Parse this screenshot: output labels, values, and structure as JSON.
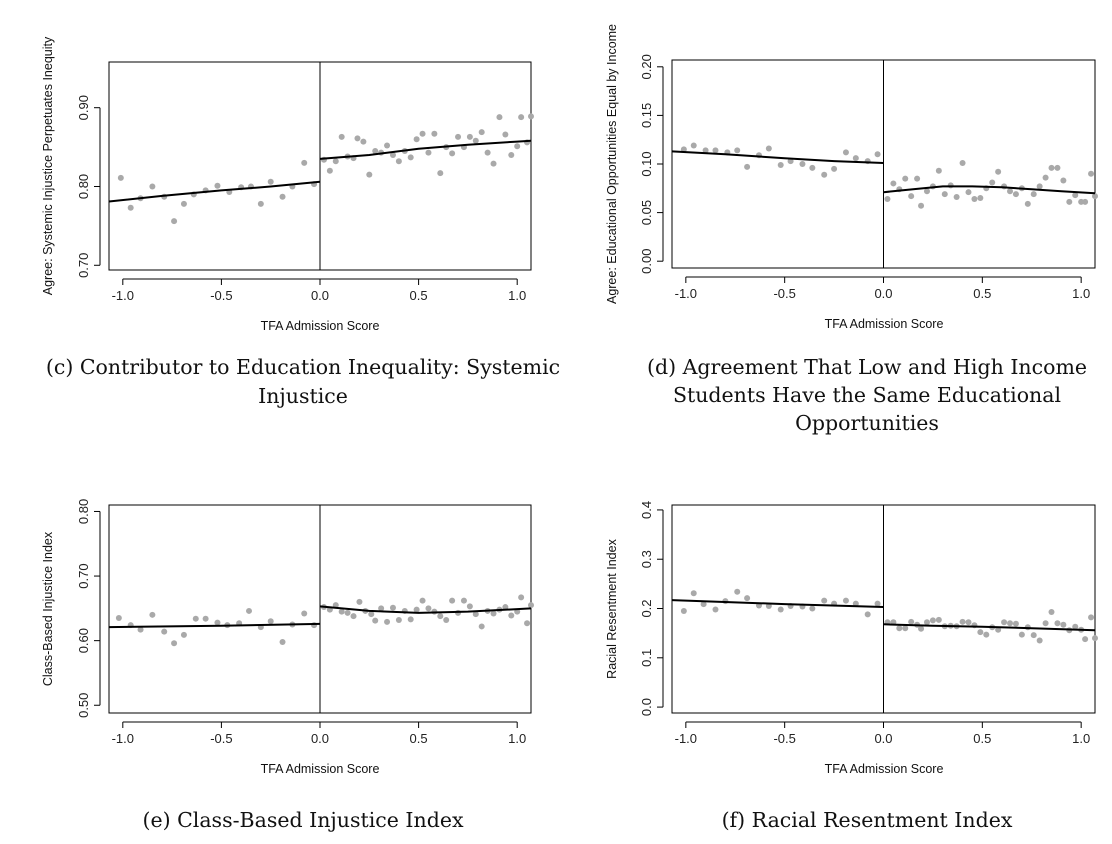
{
  "chart_data": [
    {
      "type": "scatter",
      "panel": "c",
      "caption_lines": [
        "(c) Contributor to Education Inequality: Systemic",
        "Injustice"
      ],
      "xlabel": "TFA Admission Score",
      "ylabel": "Agree: Systemic Injustice Perpetuates Inequity",
      "xlim": [
        -1.07,
        1.07
      ],
      "ylim": [
        0.694,
        0.958
      ],
      "xticks": [
        -1.0,
        -0.5,
        0.0,
        0.5,
        1.0
      ],
      "xtick_labels": [
        "-1.0",
        "-0.5",
        "0.0",
        "0.5",
        "1.0"
      ],
      "yticks": [
        0.7,
        0.8,
        0.9
      ],
      "ytick_labels": [
        "0.70",
        "0.80",
        "0.90"
      ],
      "cutoff": 0.0,
      "grid": false,
      "legend": "none",
      "points": [
        [
          -1.01,
          0.811
        ],
        [
          -0.96,
          0.773
        ],
        [
          -0.91,
          0.785
        ],
        [
          -0.85,
          0.8
        ],
        [
          -0.79,
          0.787
        ],
        [
          -0.74,
          0.756
        ],
        [
          -0.69,
          0.778
        ],
        [
          -0.64,
          0.79
        ],
        [
          -0.58,
          0.795
        ],
        [
          -0.52,
          0.801
        ],
        [
          -0.46,
          0.793
        ],
        [
          -0.4,
          0.799
        ],
        [
          -0.35,
          0.8
        ],
        [
          -0.3,
          0.778
        ],
        [
          -0.25,
          0.806
        ],
        [
          -0.19,
          0.787
        ],
        [
          -0.14,
          0.8
        ],
        [
          -0.08,
          0.83
        ],
        [
          -0.03,
          0.803
        ],
        [
          0.02,
          0.834
        ],
        [
          0.05,
          0.82
        ],
        [
          0.08,
          0.832
        ],
        [
          0.11,
          0.863
        ],
        [
          0.14,
          0.838
        ],
        [
          0.17,
          0.836
        ],
        [
          0.19,
          0.861
        ],
        [
          0.22,
          0.857
        ],
        [
          0.25,
          0.815
        ],
        [
          0.28,
          0.845
        ],
        [
          0.31,
          0.843
        ],
        [
          0.34,
          0.852
        ],
        [
          0.37,
          0.84
        ],
        [
          0.4,
          0.832
        ],
        [
          0.43,
          0.845
        ],
        [
          0.46,
          0.837
        ],
        [
          0.49,
          0.86
        ],
        [
          0.52,
          0.867
        ],
        [
          0.55,
          0.843
        ],
        [
          0.58,
          0.867
        ],
        [
          0.61,
          0.817
        ],
        [
          0.64,
          0.85
        ],
        [
          0.67,
          0.842
        ],
        [
          0.7,
          0.863
        ],
        [
          0.73,
          0.85
        ],
        [
          0.76,
          0.863
        ],
        [
          0.79,
          0.858
        ],
        [
          0.82,
          0.869
        ],
        [
          0.85,
          0.843
        ],
        [
          0.88,
          0.829
        ],
        [
          0.91,
          0.888
        ],
        [
          0.94,
          0.866
        ],
        [
          0.97,
          0.84
        ],
        [
          1.0,
          0.851
        ],
        [
          1.02,
          0.888
        ],
        [
          1.05,
          0.856
        ],
        [
          1.07,
          0.889
        ]
      ],
      "fit_left": [
        [
          -1.07,
          0.781
        ],
        [
          -0.8,
          0.788
        ],
        [
          -0.5,
          0.795
        ],
        [
          -0.25,
          0.8
        ],
        [
          0.0,
          0.806
        ]
      ],
      "fit_right": [
        [
          0.0,
          0.835
        ],
        [
          0.25,
          0.84
        ],
        [
          0.5,
          0.848
        ],
        [
          0.75,
          0.853
        ],
        [
          1.0,
          0.857
        ],
        [
          1.07,
          0.858
        ]
      ]
    },
    {
      "type": "scatter",
      "panel": "d",
      "caption_lines": [
        "(d) Agreement That Low and High Income",
        "Students Have the Same Educational",
        "Opportunities"
      ],
      "xlabel": "TFA Admission Score",
      "ylabel": "Agree: Educational Opportunities Equal by Income",
      "xlim": [
        -1.07,
        1.07
      ],
      "ylim": [
        -0.007,
        0.207
      ],
      "xticks": [
        -1.0,
        -0.5,
        0.0,
        0.5,
        1.0
      ],
      "xtick_labels": [
        "-1.0",
        "-0.5",
        "0.0",
        "0.5",
        "1.0"
      ],
      "yticks": [
        0.0,
        0.05,
        0.1,
        0.15,
        0.2
      ],
      "ytick_labels": [
        "0.00",
        "0.05",
        "0.10",
        "0.15",
        "0.20"
      ],
      "cutoff": 0.0,
      "grid": false,
      "legend": "none",
      "points": [
        [
          -1.01,
          0.115
        ],
        [
          -0.96,
          0.119
        ],
        [
          -0.9,
          0.114
        ],
        [
          -0.85,
          0.114
        ],
        [
          -0.79,
          0.112
        ],
        [
          -0.74,
          0.114
        ],
        [
          -0.69,
          0.097
        ],
        [
          -0.63,
          0.109
        ],
        [
          -0.58,
          0.116
        ],
        [
          -0.52,
          0.099
        ],
        [
          -0.47,
          0.103
        ],
        [
          -0.41,
          0.1
        ],
        [
          -0.36,
          0.096
        ],
        [
          -0.3,
          0.089
        ],
        [
          -0.25,
          0.095
        ],
        [
          -0.19,
          0.112
        ],
        [
          -0.14,
          0.106
        ],
        [
          -0.08,
          0.103
        ],
        [
          -0.03,
          0.11
        ],
        [
          0.02,
          0.064
        ],
        [
          0.05,
          0.08
        ],
        [
          0.08,
          0.074
        ],
        [
          0.11,
          0.085
        ],
        [
          0.14,
          0.067
        ],
        [
          0.17,
          0.085
        ],
        [
          0.19,
          0.057
        ],
        [
          0.22,
          0.072
        ],
        [
          0.25,
          0.077
        ],
        [
          0.28,
          0.093
        ],
        [
          0.31,
          0.069
        ],
        [
          0.34,
          0.078
        ],
        [
          0.37,
          0.066
        ],
        [
          0.4,
          0.101
        ],
        [
          0.43,
          0.071
        ],
        [
          0.46,
          0.064
        ],
        [
          0.49,
          0.065
        ],
        [
          0.52,
          0.075
        ],
        [
          0.55,
          0.081
        ],
        [
          0.58,
          0.092
        ],
        [
          0.61,
          0.077
        ],
        [
          0.64,
          0.072
        ],
        [
          0.67,
          0.069
        ],
        [
          0.7,
          0.075
        ],
        [
          0.73,
          0.059
        ],
        [
          0.76,
          0.069
        ],
        [
          0.79,
          0.077
        ],
        [
          0.82,
          0.086
        ],
        [
          0.85,
          0.096
        ],
        [
          0.88,
          0.096
        ],
        [
          0.91,
          0.083
        ],
        [
          0.94,
          0.061
        ],
        [
          0.97,
          0.068
        ],
        [
          1.0,
          0.061
        ],
        [
          1.02,
          0.061
        ],
        [
          1.05,
          0.09
        ],
        [
          1.07,
          0.067
        ]
      ],
      "fit_left": [
        [
          -1.07,
          0.113
        ],
        [
          -0.8,
          0.11
        ],
        [
          -0.5,
          0.106
        ],
        [
          -0.25,
          0.103
        ],
        [
          0.0,
          0.101
        ]
      ],
      "fit_right": [
        [
          0.0,
          0.071
        ],
        [
          0.15,
          0.074
        ],
        [
          0.3,
          0.077
        ],
        [
          0.45,
          0.077
        ],
        [
          0.6,
          0.076
        ],
        [
          0.75,
          0.074
        ],
        [
          0.9,
          0.072
        ],
        [
          1.07,
          0.07
        ]
      ]
    },
    {
      "type": "scatter",
      "panel": "e",
      "caption_lines": [
        "(e) Class-Based Injustice Index"
      ],
      "xlabel": "TFA Admission Score",
      "ylabel": "Class-Based Injustice Index",
      "xlim": [
        -1.07,
        1.07
      ],
      "ylim": [
        0.488,
        0.81
      ],
      "xticks": [
        -1.0,
        -0.5,
        0.0,
        0.5,
        1.0
      ],
      "xtick_labels": [
        "-1.0",
        "-0.5",
        "0.0",
        "0.5",
        "1.0"
      ],
      "yticks": [
        0.5,
        0.6,
        0.7,
        0.8
      ],
      "ytick_labels": [
        "0.50",
        "0.60",
        "0.70",
        "0.80"
      ],
      "cutoff": 0.0,
      "grid": false,
      "legend": "none",
      "points": [
        [
          -1.02,
          0.635
        ],
        [
          -0.96,
          0.624
        ],
        [
          -0.91,
          0.617
        ],
        [
          -0.85,
          0.64
        ],
        [
          -0.79,
          0.614
        ],
        [
          -0.74,
          0.596
        ],
        [
          -0.69,
          0.609
        ],
        [
          -0.63,
          0.634
        ],
        [
          -0.58,
          0.634
        ],
        [
          -0.52,
          0.628
        ],
        [
          -0.47,
          0.624
        ],
        [
          -0.41,
          0.627
        ],
        [
          -0.36,
          0.646
        ],
        [
          -0.3,
          0.621
        ],
        [
          -0.25,
          0.63
        ],
        [
          -0.19,
          0.598
        ],
        [
          -0.14,
          0.625
        ],
        [
          -0.08,
          0.642
        ],
        [
          -0.03,
          0.624
        ],
        [
          0.02,
          0.652
        ],
        [
          0.05,
          0.648
        ],
        [
          0.08,
          0.655
        ],
        [
          0.11,
          0.645
        ],
        [
          0.14,
          0.643
        ],
        [
          0.17,
          0.638
        ],
        [
          0.2,
          0.66
        ],
        [
          0.23,
          0.646
        ],
        [
          0.26,
          0.641
        ],
        [
          0.28,
          0.631
        ],
        [
          0.31,
          0.65
        ],
        [
          0.34,
          0.629
        ],
        [
          0.37,
          0.651
        ],
        [
          0.4,
          0.632
        ],
        [
          0.43,
          0.646
        ],
        [
          0.46,
          0.633
        ],
        [
          0.49,
          0.648
        ],
        [
          0.52,
          0.662
        ],
        [
          0.55,
          0.65
        ],
        [
          0.58,
          0.645
        ],
        [
          0.61,
          0.638
        ],
        [
          0.64,
          0.632
        ],
        [
          0.67,
          0.662
        ],
        [
          0.7,
          0.643
        ],
        [
          0.73,
          0.662
        ],
        [
          0.76,
          0.653
        ],
        [
          0.79,
          0.641
        ],
        [
          0.82,
          0.622
        ],
        [
          0.85,
          0.646
        ],
        [
          0.88,
          0.642
        ],
        [
          0.91,
          0.648
        ],
        [
          0.94,
          0.652
        ],
        [
          0.97,
          0.639
        ],
        [
          1.0,
          0.645
        ],
        [
          1.02,
          0.667
        ],
        [
          1.05,
          0.627
        ],
        [
          1.07,
          0.655
        ]
      ],
      "fit_left": [
        [
          -1.07,
          0.621
        ],
        [
          -0.5,
          0.623
        ],
        [
          0.0,
          0.626
        ]
      ],
      "fit_right": [
        [
          0.0,
          0.653
        ],
        [
          0.25,
          0.646
        ],
        [
          0.5,
          0.643
        ],
        [
          0.75,
          0.645
        ],
        [
          1.07,
          0.65
        ]
      ]
    },
    {
      "type": "scatter",
      "panel": "f",
      "caption_lines": [
        "(f) Racial Resentment Index"
      ],
      "xlabel": "TFA Admission Score",
      "ylabel": "Racial Resentment Index",
      "xlim": [
        -1.07,
        1.07
      ],
      "ylim": [
        -0.012,
        0.41
      ],
      "xticks": [
        -1.0,
        -0.5,
        0.0,
        0.5,
        1.0
      ],
      "xtick_labels": [
        "-1.0",
        "-0.5",
        "0.0",
        "0.5",
        "1.0"
      ],
      "yticks": [
        0.0,
        0.1,
        0.2,
        0.3,
        0.4
      ],
      "ytick_labels": [
        "0.0",
        "0.1",
        "0.2",
        "0.3",
        "0.4"
      ],
      "cutoff": 0.0,
      "grid": false,
      "legend": "none",
      "points": [
        [
          -1.01,
          0.195
        ],
        [
          -0.96,
          0.231
        ],
        [
          -0.91,
          0.209
        ],
        [
          -0.85,
          0.198
        ],
        [
          -0.8,
          0.215
        ],
        [
          -0.74,
          0.234
        ],
        [
          -0.69,
          0.221
        ],
        [
          -0.63,
          0.206
        ],
        [
          -0.58,
          0.205
        ],
        [
          -0.52,
          0.198
        ],
        [
          -0.47,
          0.205
        ],
        [
          -0.41,
          0.204
        ],
        [
          -0.36,
          0.2
        ],
        [
          -0.3,
          0.216
        ],
        [
          -0.25,
          0.21
        ],
        [
          -0.19,
          0.216
        ],
        [
          -0.14,
          0.21
        ],
        [
          -0.08,
          0.188
        ],
        [
          -0.03,
          0.21
        ],
        [
          0.02,
          0.172
        ],
        [
          0.05,
          0.172
        ],
        [
          0.08,
          0.16
        ],
        [
          0.11,
          0.16
        ],
        [
          0.14,
          0.173
        ],
        [
          0.17,
          0.167
        ],
        [
          0.19,
          0.159
        ],
        [
          0.22,
          0.172
        ],
        [
          0.25,
          0.176
        ],
        [
          0.28,
          0.177
        ],
        [
          0.31,
          0.164
        ],
        [
          0.34,
          0.165
        ],
        [
          0.37,
          0.164
        ],
        [
          0.4,
          0.173
        ],
        [
          0.43,
          0.172
        ],
        [
          0.46,
          0.166
        ],
        [
          0.49,
          0.152
        ],
        [
          0.52,
          0.147
        ],
        [
          0.55,
          0.162
        ],
        [
          0.58,
          0.157
        ],
        [
          0.61,
          0.172
        ],
        [
          0.64,
          0.17
        ],
        [
          0.67,
          0.169
        ],
        [
          0.7,
          0.147
        ],
        [
          0.73,
          0.162
        ],
        [
          0.76,
          0.146
        ],
        [
          0.79,
          0.135
        ],
        [
          0.82,
          0.17
        ],
        [
          0.85,
          0.193
        ],
        [
          0.88,
          0.17
        ],
        [
          0.91,
          0.167
        ],
        [
          0.94,
          0.156
        ],
        [
          0.97,
          0.163
        ],
        [
          1.0,
          0.157
        ],
        [
          1.02,
          0.138
        ],
        [
          1.05,
          0.182
        ],
        [
          1.07,
          0.14
        ]
      ],
      "fit_left": [
        [
          -1.07,
          0.217
        ],
        [
          -0.5,
          0.209
        ],
        [
          0.0,
          0.203
        ]
      ],
      "fit_right": [
        [
          0.0,
          0.168
        ],
        [
          0.25,
          0.165
        ],
        [
          0.5,
          0.163
        ],
        [
          0.75,
          0.16
        ],
        [
          1.07,
          0.156
        ]
      ]
    }
  ],
  "style": {
    "point_color": "#a9a9a9",
    "line_color": "#000000",
    "frame_color": "#000000"
  }
}
